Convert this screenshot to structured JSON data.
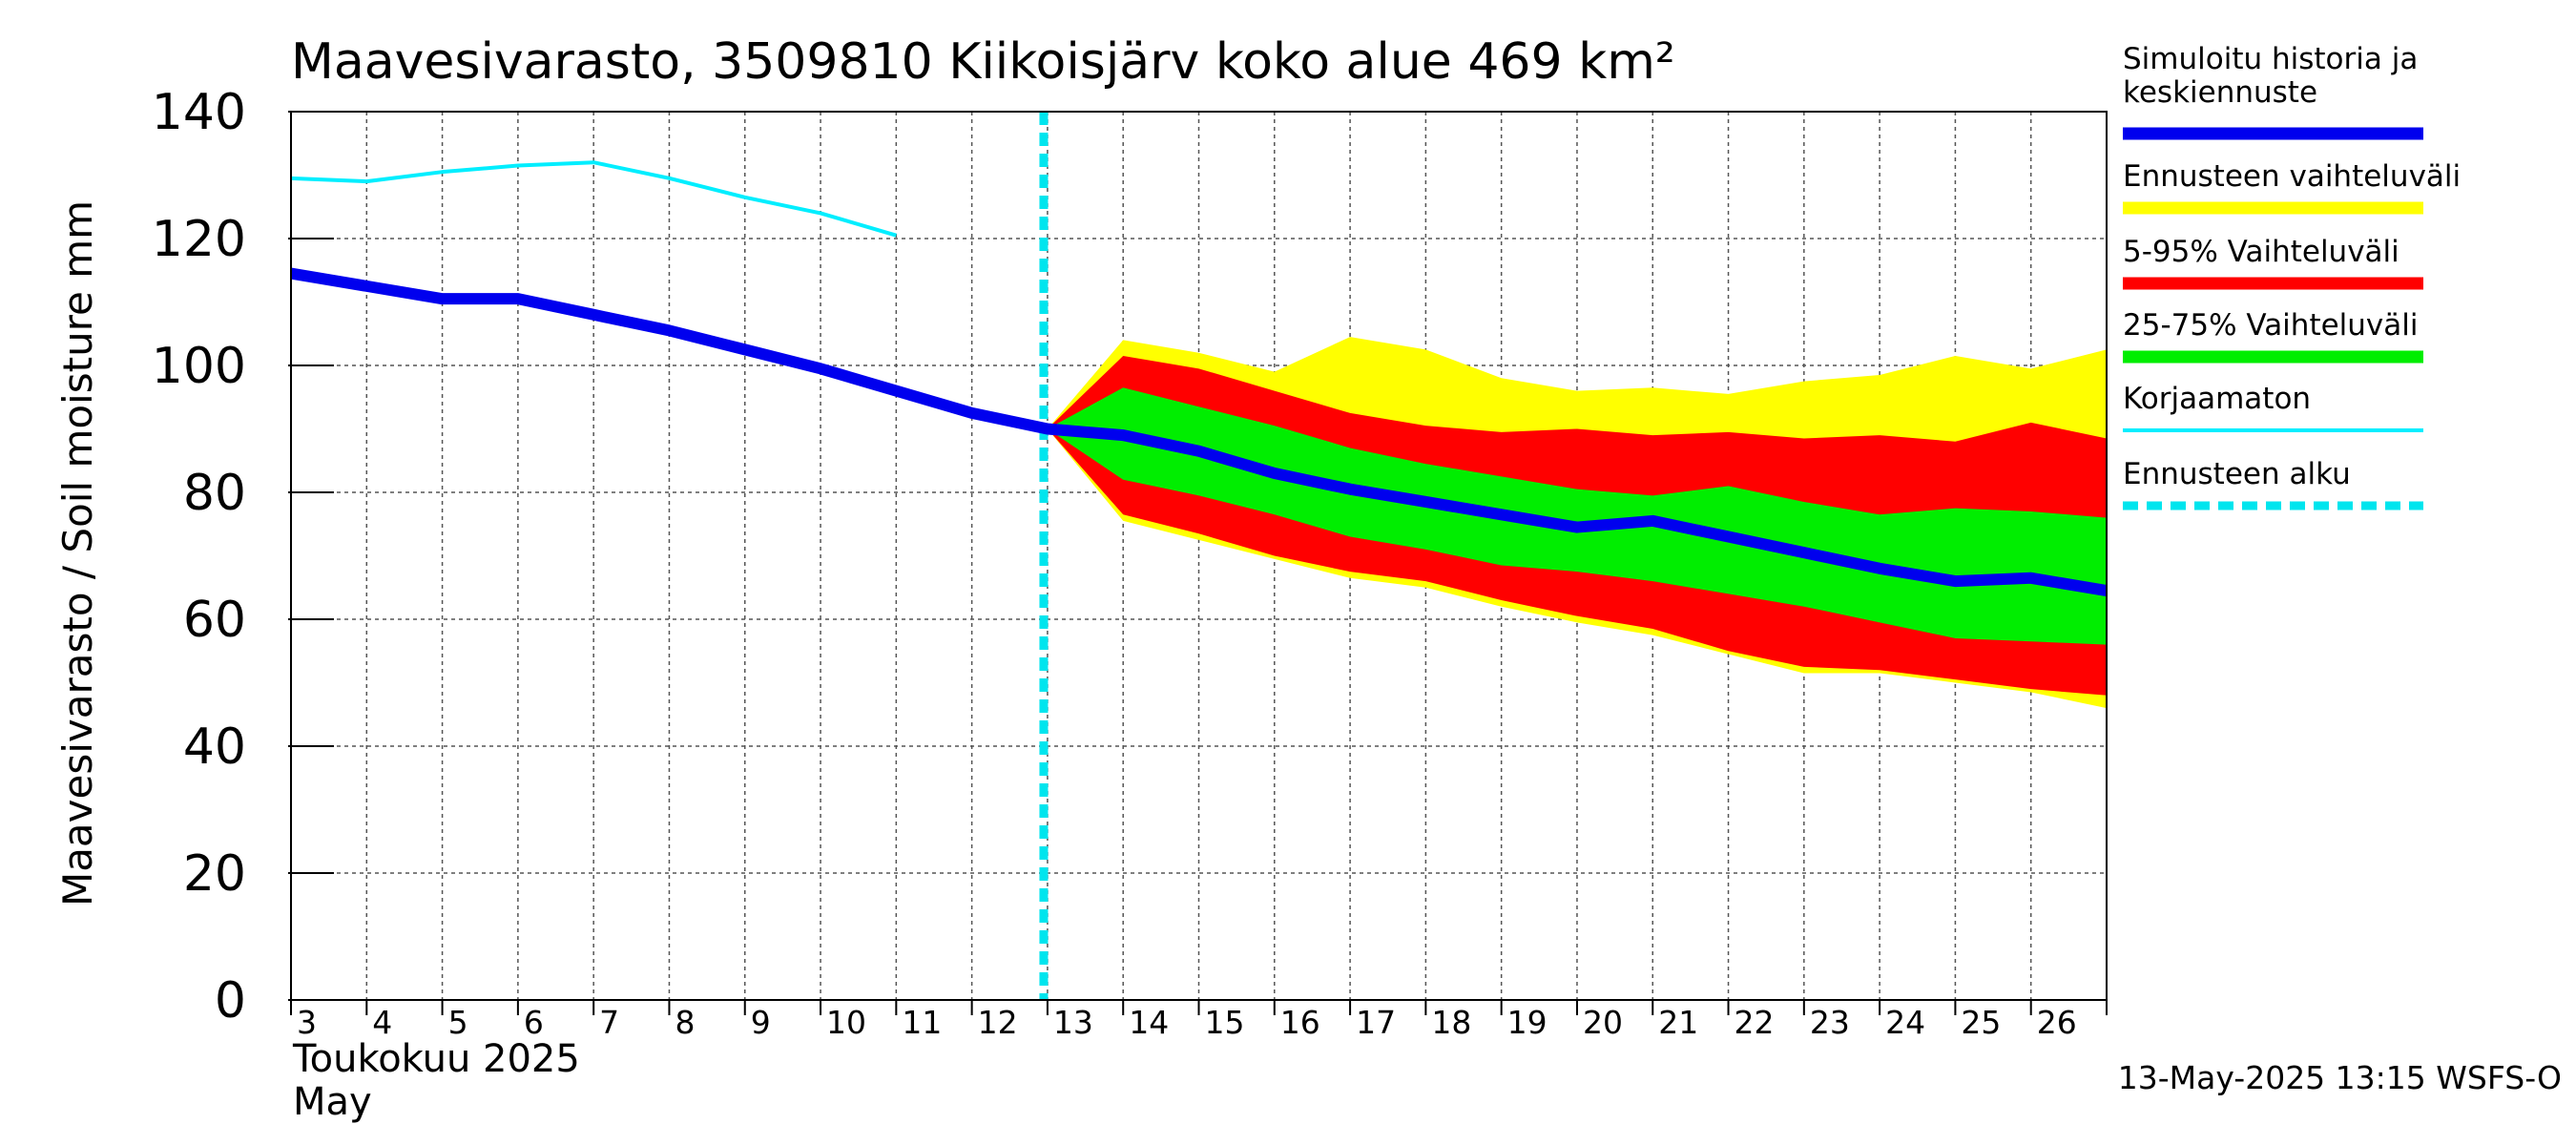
{
  "chart_data": {
    "type": "area",
    "title": "Maavesivarasto, 3509810 Kiikoisjärv koko alue 469 km²",
    "ylabel": "Maavesivarasto / Soil moisture   mm",
    "xlabel_month_fi": "Toukokuu  2025",
    "xlabel_month_en": "May",
    "ylim": [
      0,
      140
    ],
    "yticks": [
      0,
      20,
      40,
      60,
      80,
      100,
      120,
      140
    ],
    "xlim": [
      3,
      27
    ],
    "xticks": [
      3,
      4,
      5,
      6,
      7,
      8,
      9,
      10,
      11,
      12,
      13,
      14,
      15,
      16,
      17,
      18,
      19,
      20,
      21,
      22,
      23,
      24,
      25,
      26
    ],
    "forecast_start": 12.95,
    "colors": {
      "simulated": "#0000ee",
      "range_full": "#ffff00",
      "range_5_95": "#ff0000",
      "range_25_75": "#00ee00",
      "uncorrected": "#00eeff",
      "forecast_start": "#00e5ee",
      "grid": "#555555"
    },
    "series": [
      {
        "name": "Simuloitu historia ja keskiennuste",
        "x": [
          3,
          4,
          5,
          6,
          7,
          8,
          9,
          10,
          11,
          12,
          13,
          14,
          15,
          16,
          17,
          18,
          19,
          20,
          21,
          22,
          23,
          24,
          25,
          26,
          27
        ],
        "values": [
          114.5,
          112.5,
          110.5,
          110.5,
          108,
          105.5,
          102.5,
          99.5,
          96,
          92.5,
          90,
          89,
          86.5,
          83,
          80.5,
          78.5,
          76.5,
          74.5,
          75.5,
          73,
          70.5,
          68,
          66,
          66.5,
          64.5
        ]
      },
      {
        "name": "Korjaamaton",
        "x": [
          3,
          4,
          5,
          6,
          7,
          8,
          9,
          10,
          11
        ],
        "values": [
          129.5,
          129,
          130.5,
          131.5,
          132,
          129.5,
          126.5,
          124,
          120.5
        ]
      }
    ],
    "bands": [
      {
        "name": "Ennusteen vaihteluväli",
        "x": [
          13,
          14,
          15,
          16,
          17,
          18,
          19,
          20,
          21,
          22,
          23,
          24,
          25,
          26,
          27
        ],
        "upper": [
          90,
          104,
          102,
          99,
          104.5,
          102.5,
          98,
          96,
          96.5,
          95.5,
          97.5,
          98.5,
          101.5,
          99.5,
          102.5
        ],
        "lower": [
          90,
          75.5,
          72.5,
          69.5,
          66.5,
          65,
          62,
          59.5,
          57.5,
          54.5,
          51.5,
          51.5,
          50,
          48.5,
          46
        ]
      },
      {
        "name": "5-95% Vaihteluväli",
        "x": [
          13,
          14,
          15,
          16,
          17,
          18,
          19,
          20,
          21,
          22,
          23,
          24,
          25,
          26,
          27
        ],
        "upper": [
          90,
          101.5,
          99.5,
          96,
          92.5,
          90.5,
          89.5,
          90,
          89,
          89.5,
          88.5,
          89,
          88,
          91,
          88.5
        ],
        "lower": [
          90,
          76.5,
          73.5,
          70,
          67.5,
          66,
          63,
          60.5,
          58.5,
          55,
          52.5,
          52,
          50.5,
          49,
          48
        ]
      },
      {
        "name": "25-75% Vaihteluväli",
        "x": [
          13,
          14,
          15,
          16,
          17,
          18,
          19,
          20,
          21,
          22,
          23,
          24,
          25,
          26,
          27
        ],
        "upper": [
          90,
          96.5,
          93.5,
          90.5,
          87,
          84.5,
          82.5,
          80.5,
          79.5,
          81,
          78.5,
          76.5,
          77.5,
          77,
          76
        ],
        "lower": [
          90,
          82,
          79.5,
          76.5,
          73,
          71,
          68.5,
          67.5,
          66,
          64,
          62,
          59.5,
          57,
          56.5,
          56
        ]
      }
    ],
    "legend": [
      {
        "label": "Simuloitu historia ja\nkeskiennuste",
        "style": "thick",
        "color": "#0000ee"
      },
      {
        "label": "Ennusteen vaihteluväli",
        "style": "thick",
        "color": "#ffff00"
      },
      {
        "label": "5-95% Vaihteluväli",
        "style": "thick",
        "color": "#ff0000"
      },
      {
        "label": "25-75% Vaihteluväli",
        "style": "thick",
        "color": "#00ee00"
      },
      {
        "label": "Korjaamaton",
        "style": "thin",
        "color": "#00eeff"
      },
      {
        "label": "Ennusteen alku",
        "style": "dashed",
        "color": "#00e5ee"
      }
    ],
    "legend_position": "right",
    "grid": true
  },
  "timestamp": "13-May-2025 13:15 WSFS-O"
}
